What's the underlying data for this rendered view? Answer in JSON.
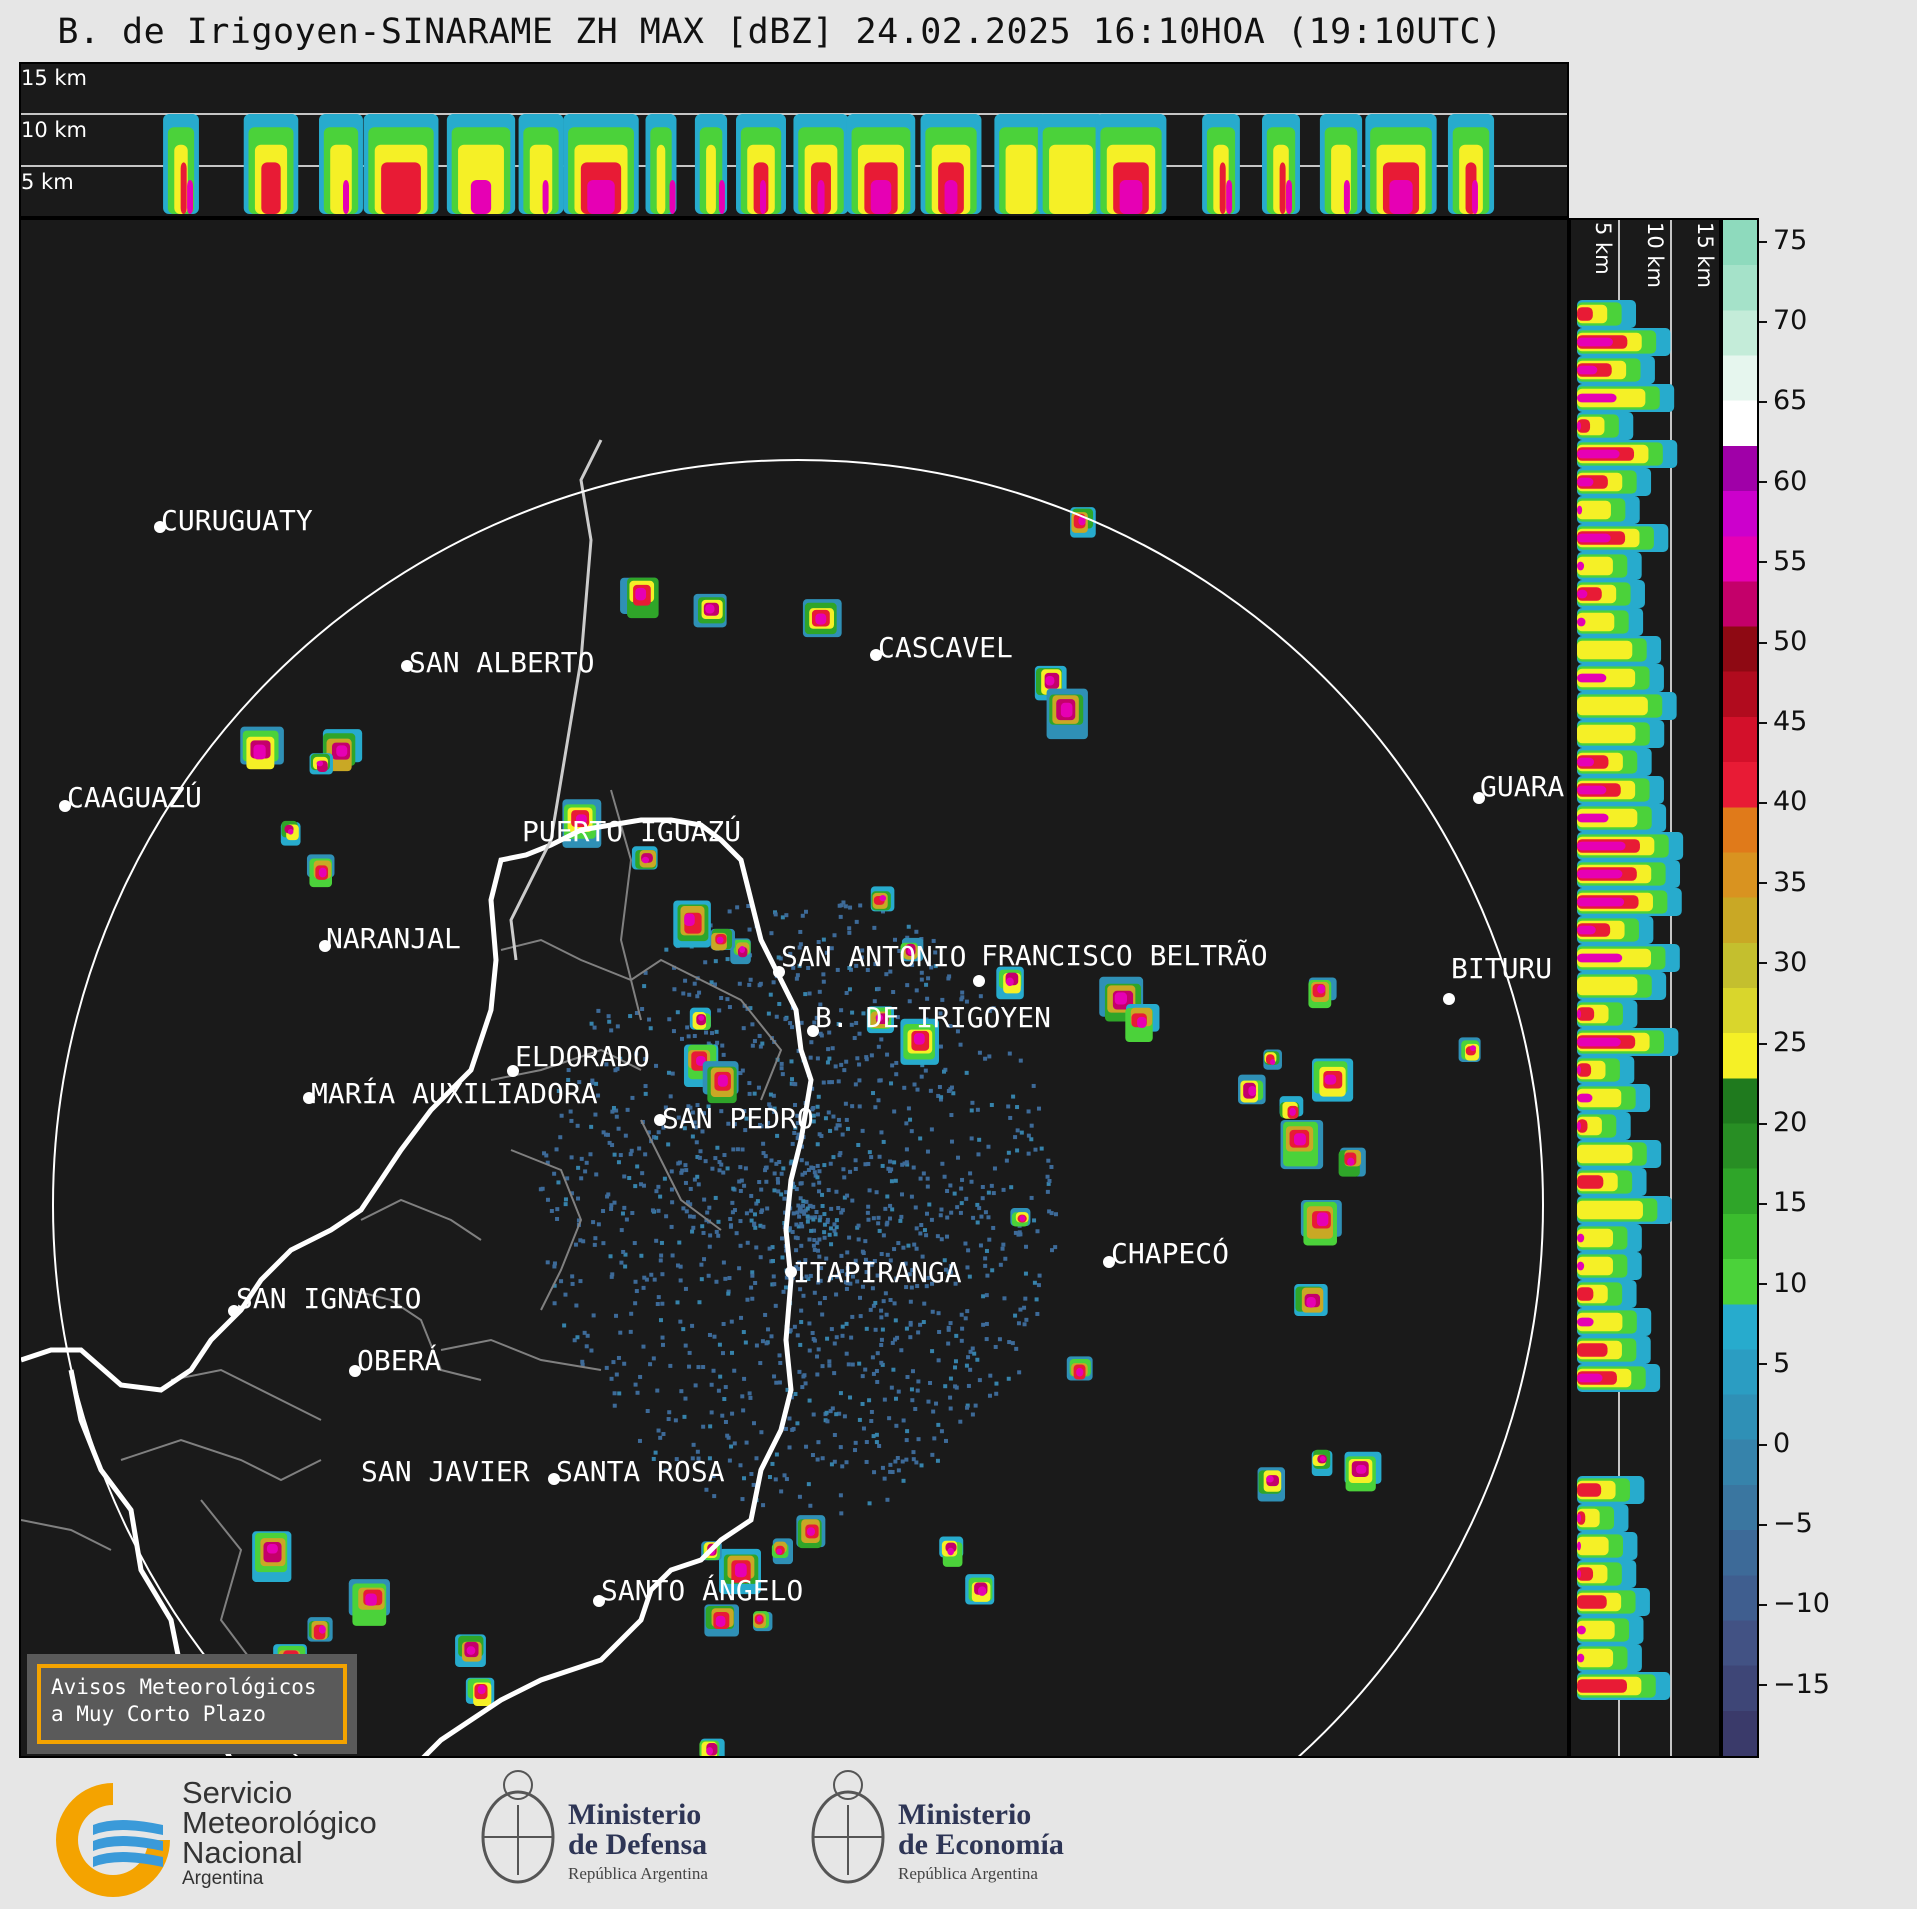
{
  "title": "B. de Irigoyen-SINARAME ZH MAX [dBZ] 24.02.2025 16:10HOA (19:10UTC)",
  "top_panel": {
    "labels": [
      "15 km",
      "10 km",
      "5 km"
    ]
  },
  "side_panel": {
    "labels": [
      "5 km",
      "10 km",
      "15 km"
    ]
  },
  "colorbar": {
    "ticks": [
      "75",
      "70",
      "65",
      "60",
      "55",
      "50",
      "45",
      "40",
      "35",
      "30",
      "25",
      "20",
      "15",
      "10",
      "5",
      "0",
      "−5",
      "−10",
      "−15"
    ],
    "colors": [
      "#3a3a6a",
      "#3e4677",
      "#425284",
      "#3f5e8f",
      "#3d6a98",
      "#3a76a0",
      "#3683ab",
      "#2f90b6",
      "#2b9dc2",
      "#27abcd",
      "#4bd23a",
      "#3bbc2e",
      "#2fa529",
      "#288e24",
      "#1f7a1e",
      "#f5f026",
      "#d9d62c",
      "#c4bf2e",
      "#c9a825",
      "#d99320",
      "#e07a1a",
      "#e81b35",
      "#d3102a",
      "#b10b1e",
      "#8e0913",
      "#c4006a",
      "#e600b4",
      "#cc00cc",
      "#a000a8",
      "#ffffff",
      "#e6f6ee",
      "#c4ecd9",
      "#a5e2c9",
      "#8edabd"
    ]
  },
  "cities": [
    {
      "name": "CURUGUATY"
    },
    {
      "name": "SAN ALBERTO"
    },
    {
      "name": "CASCAVEL"
    },
    {
      "name": "CAAGUAZÚ"
    },
    {
      "name": "GUARA"
    },
    {
      "name": "PUERTO IGUAZÚ"
    },
    {
      "name": "NARANJAL"
    },
    {
      "name": "SAN ANTONIO"
    },
    {
      "name": "FRANCISCO BELTRÃO"
    },
    {
      "name": "BITURU"
    },
    {
      "name": "B. DE IRIGOYEN"
    },
    {
      "name": "ELDORADO"
    },
    {
      "name": "MARÍA AUXILIADORA"
    },
    {
      "name": "SAN PEDRO"
    },
    {
      "name": "CHAPECÓ"
    },
    {
      "name": "ITAPIRANGA"
    },
    {
      "name": "SAN IGNACIO"
    },
    {
      "name": "OBERÁ"
    },
    {
      "name": "SAN JAVIER"
    },
    {
      "name": "SANTA ROSA"
    },
    {
      "name": "SANTO ÁNGELO"
    }
  ],
  "aviso": {
    "line1": "Avisos Meteorológicos",
    "line2": "a Muy Corto Plazo"
  },
  "logos": {
    "smn": {
      "line1": "Servicio",
      "line2": "Meteorológico",
      "line3": "Nacional",
      "line4": "Argentina"
    },
    "defensa": {
      "line1": "Ministerio",
      "line2": "de Defensa",
      "line3": "República Argentina"
    },
    "economia": {
      "line1": "Ministerio",
      "line2": "de Economía",
      "line3": "República Argentina"
    }
  }
}
